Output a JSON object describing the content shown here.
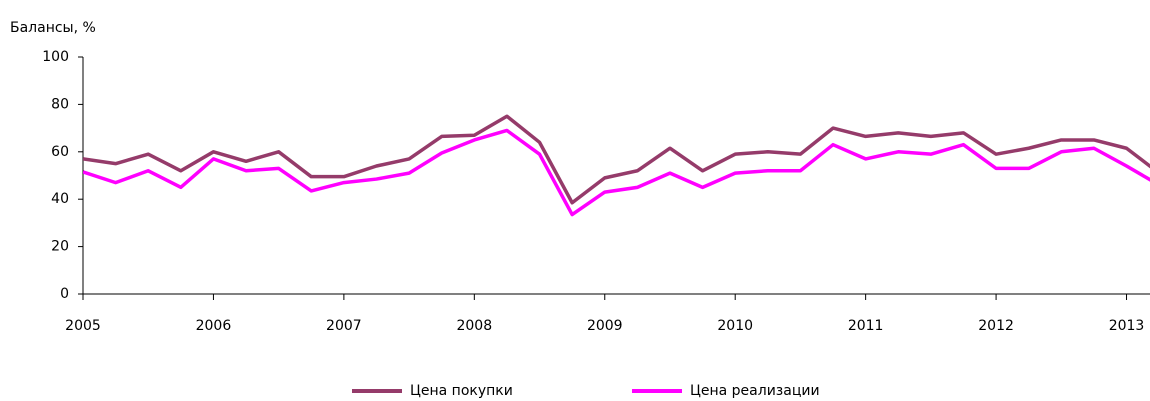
{
  "chart_data": {
    "type": "line",
    "y_label": "Балансы, %",
    "x": [
      2005,
      2005.25,
      2005.5,
      2005.75,
      2006,
      2006.25,
      2006.5,
      2006.75,
      2007,
      2007.25,
      2007.5,
      2007.75,
      2008,
      2008.25,
      2008.5,
      2008.75,
      2009,
      2009.25,
      2009.5,
      2009.75,
      2010,
      2010.25,
      2010.5,
      2010.75,
      2011,
      2011.25,
      2011.5,
      2011.75,
      2012,
      2012.25,
      2012.5,
      2012.75,
      2013,
      2013.25
    ],
    "series": [
      {
        "name": "Цена покупки",
        "color": "#953b6a",
        "values": [
          57,
          55,
          59,
          52,
          60,
          56,
          60,
          49.5,
          49.5,
          54,
          57,
          66.5,
          67,
          75,
          64,
          38.5,
          49,
          52,
          61.5,
          52,
          59,
          60,
          59,
          70,
          66.5,
          68,
          66.5,
          68,
          59,
          61.5,
          65,
          65,
          61.5,
          51
        ]
      },
      {
        "name": "Цена реализации",
        "color": "#ff00ff",
        "values": [
          51.5,
          47,
          52,
          45,
          57,
          52,
          53,
          43.5,
          47,
          48.5,
          51,
          59.5,
          65,
          69,
          59,
          33.5,
          43,
          45,
          51,
          45,
          51,
          52,
          52,
          63,
          57,
          60,
          59,
          63,
          53,
          53,
          60,
          61.5,
          54,
          46
        ]
      }
    ],
    "xlim": [
      2005,
      2013.18
    ],
    "xticks": [
      2005,
      2006,
      2007,
      2008,
      2009,
      2010,
      2011,
      2012,
      2013
    ],
    "ylim": [
      0,
      100
    ],
    "yticks": [
      0,
      20,
      40,
      60,
      80,
      100
    ],
    "grid": false,
    "legend": "bottom"
  }
}
